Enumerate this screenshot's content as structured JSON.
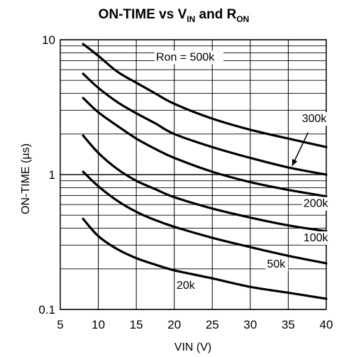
{
  "chart_data": {
    "type": "line",
    "title": {
      "main": "ON-TIME vs V",
      "main_sub": "IN",
      "connector": " and R",
      "connector_sub": "ON"
    },
    "xlabel": "VIN (V)",
    "ylabel": "ON-TIME (µs)",
    "xlim": [
      5,
      40
    ],
    "ylim": [
      0.1,
      10
    ],
    "yscale": "log",
    "x_ticks": [
      "5",
      "10",
      "15",
      "20",
      "25",
      "30",
      "35",
      "40"
    ],
    "y_ticks": [
      "0.1",
      "1",
      "10"
    ],
    "grid": true,
    "series": [
      {
        "name": "Ron = 500k",
        "x": [
          8,
          10,
          12.5,
          15,
          17.5,
          20,
          25,
          30,
          35,
          40
        ],
        "y": [
          9.3,
          7.6,
          5.8,
          4.8,
          4.0,
          3.35,
          2.6,
          2.15,
          1.85,
          1.6
        ]
      },
      {
        "name": "300k",
        "x": [
          8,
          10,
          12.5,
          15,
          17.5,
          20,
          25,
          30,
          35,
          40
        ],
        "y": [
          5.6,
          4.4,
          3.45,
          2.85,
          2.4,
          2.0,
          1.6,
          1.33,
          1.13,
          1.0
        ]
      },
      {
        "name": "200k",
        "x": [
          8,
          10,
          12.5,
          15,
          17.5,
          20,
          25,
          30,
          35,
          40
        ],
        "y": [
          3.7,
          2.9,
          2.3,
          1.85,
          1.55,
          1.33,
          1.05,
          0.88,
          0.77,
          0.69
        ]
      },
      {
        "name": "100k",
        "x": [
          8,
          10,
          12.5,
          15,
          17.5,
          20,
          25,
          30,
          35,
          40
        ],
        "y": [
          1.95,
          1.45,
          1.1,
          0.9,
          0.78,
          0.68,
          0.56,
          0.48,
          0.42,
          0.38
        ]
      },
      {
        "name": "50k",
        "x": [
          8,
          10,
          12.5,
          15,
          17.5,
          20,
          25,
          30,
          35,
          40
        ],
        "y": [
          1.05,
          0.82,
          0.64,
          0.53,
          0.46,
          0.41,
          0.34,
          0.29,
          0.25,
          0.22
        ]
      },
      {
        "name": "20k",
        "x": [
          8,
          10,
          12.5,
          15,
          17.5,
          20,
          25,
          30,
          35,
          40
        ],
        "y": [
          0.47,
          0.35,
          0.28,
          0.24,
          0.215,
          0.195,
          0.17,
          0.147,
          0.133,
          0.12
        ]
      }
    ],
    "annotations": [
      "Ron = 500k",
      "300k",
      "200k",
      "100k",
      "50k",
      "20k"
    ]
  }
}
